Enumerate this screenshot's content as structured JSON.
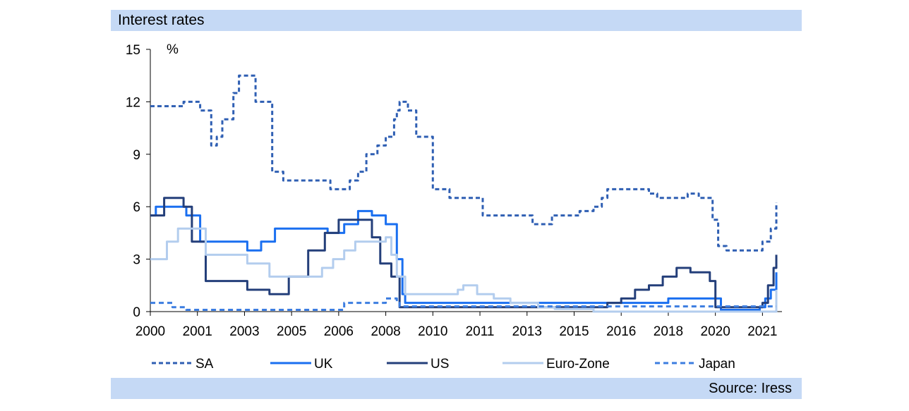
{
  "header": {
    "title": "Interest rates"
  },
  "footer": {
    "source": "Source: Iress"
  },
  "chart_data": {
    "type": "line",
    "title": "Interest rates",
    "ylabel": "%",
    "ylim": [
      0,
      15
    ],
    "yticks": [
      0,
      3,
      6,
      9,
      12,
      15
    ],
    "xlim": [
      2000.0,
      2022.6
    ],
    "xtick_labels": [
      "2000",
      "2001",
      "2003",
      "2005",
      "2006",
      "2008",
      "2010",
      "2011",
      "2013",
      "2015",
      "2016",
      "2018",
      "2020",
      "2021"
    ],
    "xtick_values": [
      2000.0,
      2001.7,
      2003.4,
      2005.1,
      2006.8,
      2008.5,
      2010.2,
      2011.9,
      2013.6,
      2015.3,
      2017.0,
      2018.7,
      2020.4,
      2022.1
    ],
    "legend_position": "bottom",
    "series": [
      {
        "name": "SA",
        "color": "#2f5fb3",
        "dash": "6 4",
        "x": [
          2000.0,
          2000.8,
          2001.2,
          2001.5,
          2001.8,
          2002.2,
          2002.4,
          2002.6,
          2003.0,
          2003.2,
          2003.4,
          2003.6,
          2003.8,
          2004.4,
          2004.8,
          2005.4,
          2006.5,
          2006.8,
          2007.2,
          2007.5,
          2007.8,
          2008.2,
          2008.5,
          2008.8,
          2008.9,
          2009.0,
          2009.2,
          2009.3,
          2009.6,
          2010.2,
          2010.5,
          2010.8,
          2012.0,
          2012.4,
          2013.8,
          2014.0,
          2014.5,
          2015.2,
          2015.5,
          2016.0,
          2016.3,
          2016.5,
          2017.5,
          2018.0,
          2018.3,
          2018.9,
          2019.4,
          2019.8,
          2020.2,
          2020.3,
          2020.5,
          2020.8,
          2021.5,
          2021.8,
          2022.1,
          2022.4,
          2022.6
        ],
        "y": [
          11.75,
          11.75,
          12.0,
          12.0,
          11.5,
          9.5,
          10.0,
          11.0,
          12.5,
          13.5,
          13.5,
          13.5,
          12.0,
          8.0,
          7.5,
          7.5,
          7.0,
          7.0,
          7.5,
          8.0,
          9.0,
          9.5,
          10.0,
          11.0,
          11.5,
          12.0,
          12.0,
          11.5,
          10.0,
          7.0,
          7.0,
          6.5,
          5.5,
          5.5,
          5.0,
          5.0,
          5.5,
          5.5,
          5.75,
          6.0,
          6.5,
          7.0,
          7.0,
          6.75,
          6.5,
          6.5,
          6.75,
          6.5,
          6.5,
          5.25,
          3.75,
          3.5,
          3.5,
          3.5,
          4.0,
          4.75,
          6.25
        ]
      },
      {
        "name": "UK",
        "color": "#1a6ff0",
        "dash": "",
        "x": [
          2000.0,
          2000.2,
          2001.0,
          2001.3,
          2001.8,
          2002.8,
          2003.5,
          2004.0,
          2004.5,
          2005.4,
          2006.4,
          2007.0,
          2007.5,
          2008.0,
          2008.5,
          2008.9,
          2009.1,
          2009.2,
          2018.6,
          2018.7,
          2019.5,
          2020.5,
          2020.6,
          2021.8,
          2022.0,
          2022.2,
          2022.4,
          2022.6
        ],
        "y": [
          5.5,
          6.0,
          6.0,
          5.5,
          4.0,
          4.0,
          3.5,
          4.0,
          4.75,
          4.75,
          4.5,
          5.0,
          5.75,
          5.5,
          5.0,
          3.0,
          1.0,
          0.5,
          0.5,
          0.75,
          0.75,
          0.75,
          0.1,
          0.1,
          0.25,
          0.75,
          1.25,
          2.25
        ]
      },
      {
        "name": "US",
        "color": "#243f7a",
        "dash": "",
        "x": [
          2000.0,
          2000.5,
          2000.9,
          2001.2,
          2001.5,
          2002.0,
          2002.9,
          2003.5,
          2004.3,
          2005.0,
          2005.7,
          2006.3,
          2006.8,
          2007.7,
          2008.0,
          2008.3,
          2008.7,
          2009.0,
          2015.9,
          2016.5,
          2017.0,
          2017.5,
          2018.0,
          2018.5,
          2019.0,
          2019.5,
          2020.2,
          2020.4,
          2021.9,
          2022.1,
          2022.3,
          2022.5,
          2022.6
        ],
        "y": [
          5.5,
          6.5,
          6.5,
          6.0,
          4.0,
          1.75,
          1.75,
          1.25,
          1.0,
          2.0,
          3.5,
          4.5,
          5.25,
          5.25,
          4.25,
          2.75,
          2.0,
          0.25,
          0.25,
          0.5,
          0.75,
          1.25,
          1.5,
          2.0,
          2.5,
          2.25,
          1.75,
          0.25,
          0.25,
          0.5,
          1.5,
          2.5,
          3.25
        ]
      },
      {
        "name": "Euro-Zone",
        "color": "#b3cdee",
        "dash": "",
        "x": [
          2000.0,
          2000.6,
          2001.0,
          2001.5,
          2002.0,
          2002.9,
          2003.5,
          2004.3,
          2005.8,
          2006.2,
          2006.6,
          2007.0,
          2007.4,
          2008.3,
          2008.5,
          2008.7,
          2008.9,
          2009.2,
          2010.8,
          2011.1,
          2011.3,
          2011.8,
          2012.4,
          2013.0,
          2013.6,
          2014.0,
          2014.6,
          2016.0,
          2022.4,
          2022.6
        ],
        "y": [
          3.0,
          4.0,
          4.75,
          4.75,
          3.25,
          3.25,
          2.75,
          2.0,
          2.0,
          2.5,
          3.0,
          3.5,
          4.0,
          4.0,
          4.25,
          3.25,
          2.0,
          1.0,
          1.0,
          1.25,
          1.5,
          1.0,
          0.75,
          0.5,
          0.5,
          0.25,
          0.15,
          0.0,
          0.0,
          1.25
        ]
      },
      {
        "name": "Japan",
        "color": "#3c7de0",
        "dash": "7 5",
        "x": [
          2000.0,
          2000.5,
          2000.8,
          2001.3,
          2006.5,
          2007.0,
          2008.5,
          2008.9,
          2009.0,
          2022.6
        ],
        "y": [
          0.5,
          0.5,
          0.25,
          0.1,
          0.1,
          0.5,
          0.75,
          0.5,
          0.3,
          0.3
        ]
      }
    ]
  }
}
